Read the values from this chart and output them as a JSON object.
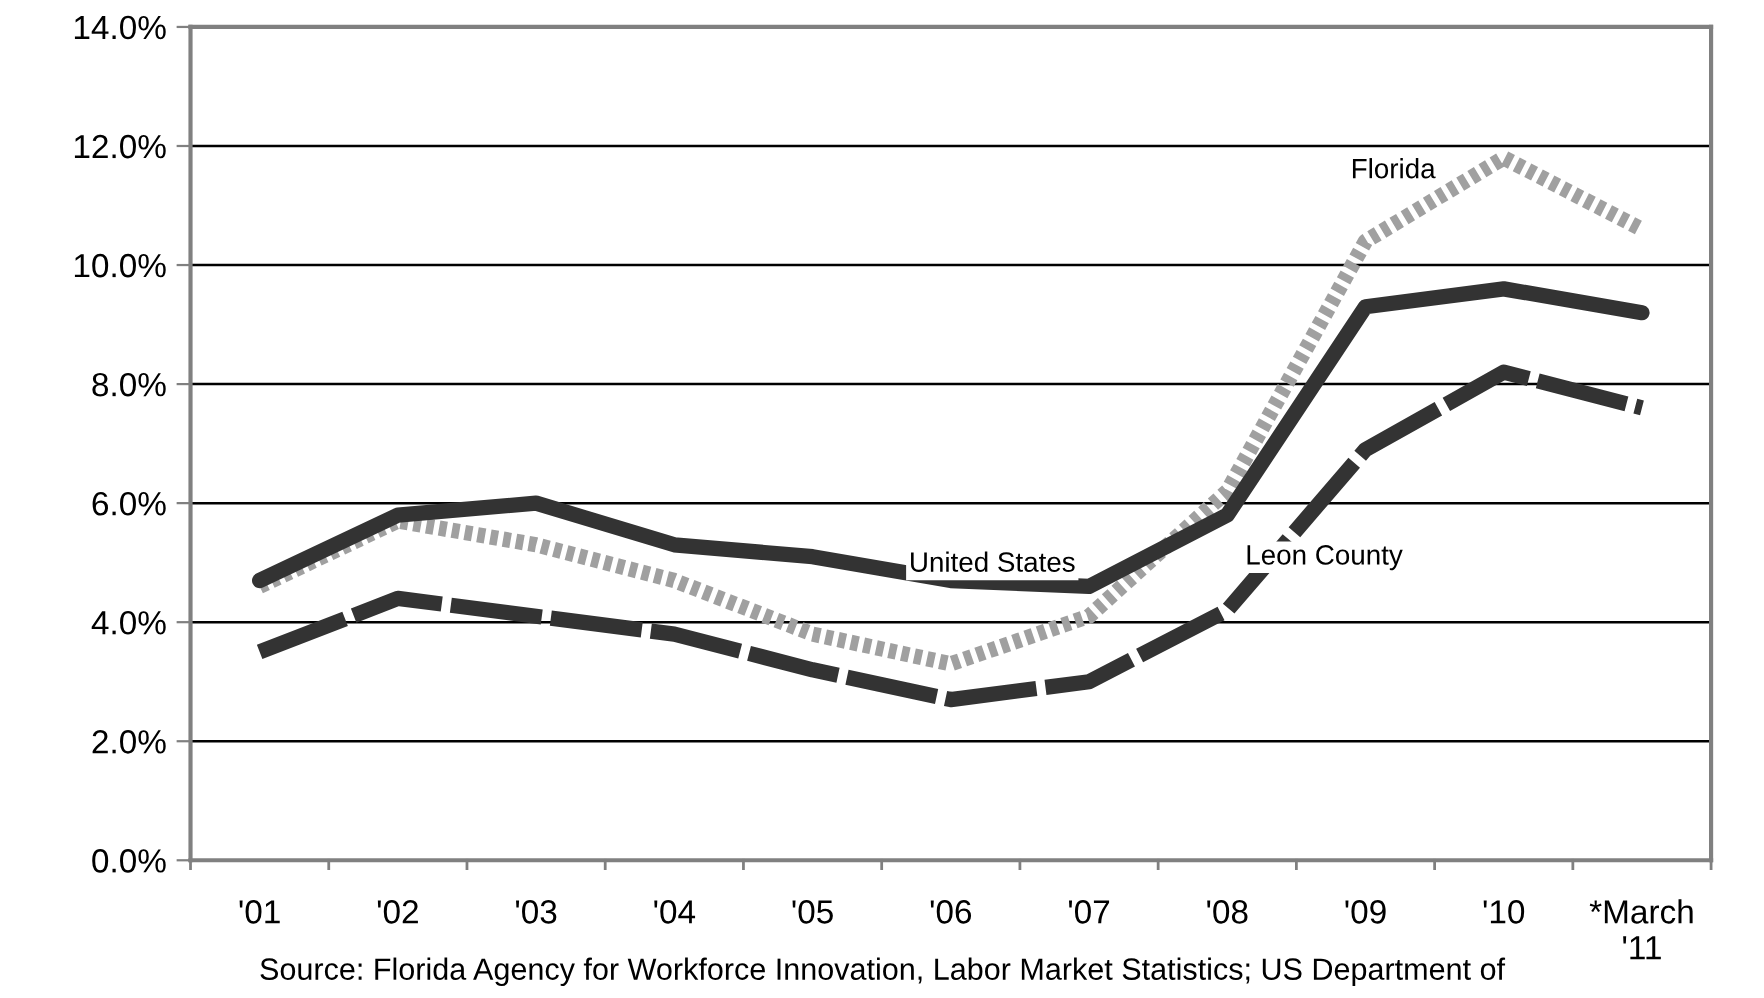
{
  "chart_data": {
    "type": "line",
    "categories": [
      "'01",
      "'02",
      "'03",
      "'04",
      "'05",
      "'06",
      "'07",
      "'08",
      "'09",
      "'10",
      "*March\n'11"
    ],
    "series": [
      {
        "name": "Florida",
        "color": "#a0a0a0",
        "line_style": "dotted",
        "values": [
          4.6,
          5.7,
          5.3,
          4.7,
          3.8,
          3.3,
          4.1,
          6.2,
          10.4,
          11.8,
          10.6
        ]
      },
      {
        "name": "United States",
        "color": "#333333",
        "line_style": "solid",
        "values": [
          4.7,
          5.8,
          6.0,
          5.3,
          5.1,
          4.7,
          4.6,
          5.8,
          9.3,
          9.6,
          9.2
        ]
      },
      {
        "name": "Leon County",
        "color": "#333333",
        "line_style": "dashed",
        "values": [
          3.5,
          4.4,
          4.1,
          3.8,
          3.2,
          2.7,
          3.0,
          4.2,
          6.9,
          8.2,
          7.6
        ]
      }
    ],
    "ylim": [
      0,
      14
    ],
    "yticks": [
      {
        "value": 0,
        "label": "0.0%"
      },
      {
        "value": 2,
        "label": "2.0%"
      },
      {
        "value": 4,
        "label": "4.0%"
      },
      {
        "value": 6,
        "label": "6.0%"
      },
      {
        "value": 8,
        "label": "8.0%"
      },
      {
        "value": 10,
        "label": "10.0%"
      },
      {
        "value": 12,
        "label": "12.0%"
      },
      {
        "value": 14,
        "label": "14.0%"
      }
    ],
    "grid": "y",
    "legend": false,
    "marker": "none",
    "annotations": [
      "Source: Florida Agency for Workforce Innovation, Labor Market Statistics; US Department of"
    ]
  }
}
